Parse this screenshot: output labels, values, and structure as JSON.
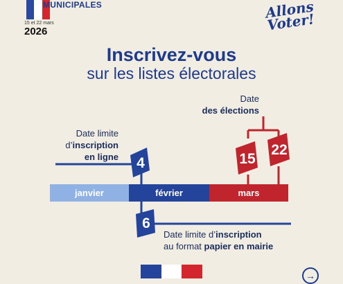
{
  "header": {
    "election_name": "MUNICIPALES",
    "dates": "15 et 22 mars",
    "year": "2026",
    "slogan": "Allons Voter!"
  },
  "title": {
    "line1": "Inscrivez-vous",
    "line2": "sur les listes électorales"
  },
  "timeline": {
    "months": [
      "janvier",
      "février",
      "mars"
    ],
    "online_deadline_day": "4",
    "paper_deadline_day": "6",
    "election_days": [
      "15",
      "22"
    ]
  },
  "labels": {
    "elections_line1": "Date",
    "elections_line2": "des élections",
    "online_line1": "Date limite",
    "online_line2_pre": "d’",
    "online_line2_bold": "inscription",
    "online_line3": "en ligne",
    "paper_line1_pre": "Date limite d’",
    "paper_line1_bold": "inscription",
    "paper_line2_pre": "au format ",
    "paper_line2_bold": "papier en mairie"
  },
  "colors": {
    "background": "#f1ede3",
    "navy": "#23449a",
    "light_blue": "#8fb1e3",
    "red": "#c0252d"
  },
  "icons": {
    "next": "arrow-right-icon"
  }
}
